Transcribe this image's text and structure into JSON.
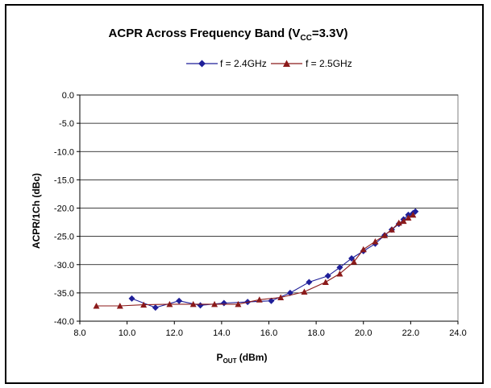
{
  "chart_data": {
    "type": "line",
    "title": {
      "main": "ACPR Across Frequency Band (V",
      "sub": "CC",
      "tail": "=3.3V)"
    },
    "xlabel": {
      "main": "P",
      "sub": "OUT",
      "tail": " (dBm)"
    },
    "ylabel": "ACPR/1Ch (dBc)",
    "xlim": [
      8.0,
      24.0
    ],
    "ylim": [
      -40.0,
      0.0
    ],
    "xticks": [
      8.0,
      10.0,
      12.0,
      14.0,
      16.0,
      18.0,
      20.0,
      22.0,
      24.0
    ],
    "yticks": [
      0.0,
      -5.0,
      -10.0,
      -15.0,
      -20.0,
      -25.0,
      -30.0,
      -35.0,
      -40.0
    ],
    "tick_labels_x": [
      "8.0",
      "10.0",
      "12.0",
      "14.0",
      "16.0",
      "18.0",
      "20.0",
      "22.0",
      "24.0"
    ],
    "tick_labels_y": [
      "0.0",
      "-5.0",
      "-10.0",
      "-15.0",
      "-20.0",
      "-25.0",
      "-30.0",
      "-35.0",
      "-40.0"
    ],
    "grid": "horizontal",
    "legend_position": "top-center",
    "series": [
      {
        "name": "f = 2.4GHz",
        "color": "#1f1f99",
        "marker": "diamond",
        "x": [
          10.2,
          11.2,
          12.2,
          13.1,
          14.1,
          15.1,
          16.1,
          16.9,
          17.7,
          18.5,
          19.0,
          19.5,
          20.0,
          20.5,
          20.9,
          21.2,
          21.5,
          21.7,
          21.9,
          22.1,
          22.2
        ],
        "y": [
          -36.0,
          -37.6,
          -36.4,
          -37.2,
          -36.8,
          -36.6,
          -36.4,
          -35.0,
          -33.1,
          -32.0,
          -30.5,
          -28.9,
          -27.6,
          -26.3,
          -24.8,
          -23.8,
          -22.8,
          -22.0,
          -21.2,
          -20.9,
          -20.6
        ]
      },
      {
        "name": "f = 2.5GHz",
        "color": "#8b1a1a",
        "marker": "triangle",
        "x": [
          8.7,
          9.7,
          10.7,
          11.8,
          12.8,
          13.7,
          14.7,
          15.6,
          16.5,
          17.5,
          18.4,
          19.0,
          19.6,
          20.0,
          20.5,
          20.9,
          21.2,
          21.5,
          21.7,
          21.9,
          22.1
        ],
        "y": [
          -37.3,
          -37.3,
          -37.1,
          -37.0,
          -37.0,
          -37.0,
          -37.0,
          -36.2,
          -35.8,
          -34.8,
          -33.1,
          -31.6,
          -29.5,
          -27.3,
          -25.9,
          -24.8,
          -23.8,
          -22.6,
          -22.3,
          -21.7,
          -21.2
        ]
      }
    ]
  }
}
